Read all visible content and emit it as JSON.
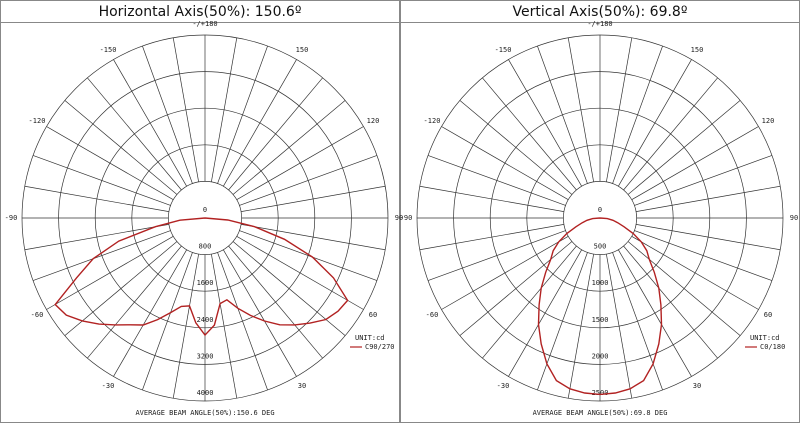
{
  "chart_data": [
    {
      "type": "polar",
      "title": "Horizontal Axis(50%): 150.6º",
      "x": [
        -90,
        -85,
        -80,
        -75,
        -70,
        -65,
        -60,
        -55,
        -50,
        -45,
        -40,
        -35,
        -30,
        -25,
        -20,
        -15,
        -10,
        -5,
        0,
        5,
        10,
        15,
        20,
        25,
        30,
        35,
        40,
        45,
        50,
        55,
        60,
        65,
        70,
        75,
        80,
        85,
        90
      ],
      "series": [
        {
          "name": "C90/270",
          "color": "#b22222",
          "values": [
            0,
            550,
            1100,
            1950,
            2600,
            3100,
            3780,
            3700,
            3500,
            3280,
            3050,
            2850,
            2700,
            2450,
            2200,
            2000,
            1950,
            2300,
            2560,
            2350,
            1900,
            1850,
            2100,
            2350,
            2600,
            2850,
            3050,
            3250,
            3450,
            3550,
            3600,
            3100,
            2500,
            1800,
            1100,
            500,
            0
          ]
        }
      ],
      "rlim": [
        0,
        4000
      ],
      "rticks": [
        0,
        800,
        1600,
        2400,
        3200,
        4000
      ],
      "xticks": [
        {
          "value": 180,
          "label": "-/+180"
        },
        -150,
        150,
        -120,
        120,
        -90,
        90,
        -60,
        60,
        -30,
        30
      ],
      "unit": "UNIT:cd",
      "annotation": "AVERAGE BEAM ANGLE(50%):150.6 DEG"
    },
    {
      "type": "polar",
      "title": "Vertical Axis(50%): 69.8º",
      "x": [
        -90,
        -85,
        -80,
        -75,
        -70,
        -65,
        -60,
        -55,
        -50,
        -45,
        -40,
        -35,
        -30,
        -25,
        -20,
        -15,
        -10,
        -5,
        0,
        5,
        10,
        15,
        20,
        25,
        30,
        35,
        40,
        45,
        50,
        55,
        60,
        65,
        70,
        75,
        80,
        85,
        90
      ],
      "series": [
        {
          "name": "C0/180",
          "color": "#b22222",
          "values": [
            0,
            100,
            180,
            250,
            350,
            500,
            650,
            780,
            880,
            1050,
            1250,
            1450,
            1680,
            1900,
            2120,
            2300,
            2370,
            2400,
            2410,
            2400,
            2370,
            2300,
            2120,
            1900,
            1680,
            1450,
            1250,
            1050,
            880,
            780,
            650,
            500,
            350,
            250,
            180,
            100,
            0
          ]
        }
      ],
      "rlim": [
        0,
        2500
      ],
      "rticks": [
        0,
        500,
        1000,
        1500,
        2000,
        2500
      ],
      "xticks": [
        {
          "value": 180,
          "label": "-/+180"
        },
        -150,
        150,
        -120,
        120,
        -90,
        90,
        -60,
        60,
        -30,
        30
      ],
      "unit": "UNIT:cd",
      "annotation": "AVERAGE BEAM ANGLE(50%):69.8 DEG"
    }
  ]
}
